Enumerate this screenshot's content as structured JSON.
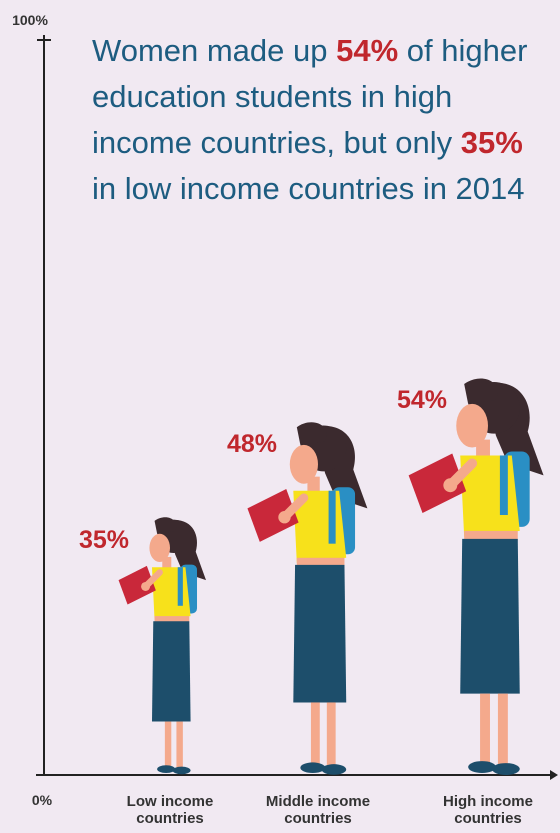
{
  "chart_data": {
    "type": "pictograph",
    "title": [
      {
        "text": "Women made up "
      },
      {
        "text": "54%",
        "bold": true
      },
      {
        "text": " of higher education students in high income countries, but only "
      },
      {
        "text": "35%",
        "bold": true
      },
      {
        "text": " in low income countries in 2014"
      }
    ],
    "title_color": "#1d5c80",
    "highlight_color": "#c0272d",
    "categories": [
      "Low income countries",
      "Middle income countries",
      "High income countries"
    ],
    "values": [
      35,
      48,
      54
    ],
    "value_labels": [
      "35%",
      "48%",
      "54%"
    ],
    "ylim": [
      0,
      100
    ],
    "yticks": [
      {
        "value": 0,
        "label": "0%"
      },
      {
        "value": 100,
        "label": "100%"
      }
    ],
    "colors": {
      "hair": "#3b2a2e",
      "skin": "#f4a98c",
      "shirt": "#f7e11b",
      "skirt": "#1d4e6b",
      "backpack": "#2a8fc4",
      "book": "#c9283a"
    }
  }
}
